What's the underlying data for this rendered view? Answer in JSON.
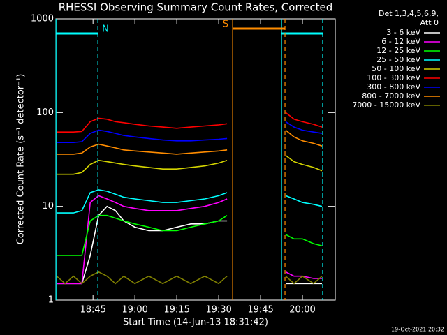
{
  "chart_data": {
    "type": "line",
    "title": "RHESSI Observing Summary Count Rates, Corrected",
    "x_label": "Start Time (14-Jun-13 18:31:42)",
    "y_label": "Corrected Count Rate (s⁻¹ detector⁻¹)",
    "legend_header": [
      "Det 1,3,4,5,6,9,",
      "Att 0"
    ],
    "footer": "19-Oct-2021 20:32",
    "log_y": true,
    "xlim": [
      31.7,
      131.75
    ],
    "ylim": [
      1,
      1000
    ],
    "xticks": [
      {
        "value": 45,
        "label": "18:45"
      },
      {
        "value": 60,
        "label": "19:00"
      },
      {
        "value": 75,
        "label": "19:15"
      },
      {
        "value": 90,
        "label": "19:30"
      },
      {
        "value": 105,
        "label": "19:45"
      },
      {
        "value": 120,
        "label": "20:00"
      }
    ],
    "yticks": [
      1,
      10,
      100,
      1000
    ],
    "x": [
      32,
      35,
      38,
      41,
      44,
      47,
      50,
      53,
      56,
      60,
      65,
      70,
      75,
      80,
      85,
      90,
      93,
      100,
      114,
      117,
      120,
      124,
      127
    ],
    "series": [
      {
        "name": "3 - 6 keV",
        "color": "#ffffff",
        "values": [
          1.5,
          1.5,
          1.5,
          1.5,
          3,
          8,
          10,
          9,
          7,
          6,
          5.5,
          5.5,
          6,
          6.5,
          6.5,
          7,
          7,
          null,
          1.5,
          1.5,
          1.5,
          1.5,
          1.5
        ]
      },
      {
        "name": "6 - 12 keV",
        "color": "#ff00ff",
        "values": [
          1.5,
          1.5,
          1.5,
          1.5,
          11,
          13,
          12,
          11,
          10,
          9.5,
          9,
          9,
          9,
          9.5,
          10,
          11,
          12,
          null,
          2,
          1.8,
          1.8,
          1.7,
          1.7
        ]
      },
      {
        "name": "12 - 25 keV",
        "color": "#00ff00",
        "values": [
          3,
          3,
          3,
          3,
          7,
          8,
          8,
          7.5,
          7,
          6.5,
          6,
          5.5,
          5.5,
          6,
          6.5,
          7,
          8,
          null,
          5,
          4.5,
          4.5,
          4,
          3.8
        ]
      },
      {
        "name": "25 - 50 keV",
        "color": "#00ffff",
        "values": [
          8.5,
          8.5,
          8.5,
          9,
          14,
          15,
          14.5,
          13.5,
          12.5,
          12,
          11.5,
          11,
          11,
          11.5,
          12,
          13,
          14,
          null,
          13,
          12,
          11,
          10.5,
          10
        ]
      },
      {
        "name": "50 - 100 keV",
        "color": "#d4d400",
        "values": [
          22,
          22,
          22,
          23,
          28,
          31,
          30,
          29,
          28,
          27,
          26,
          25,
          25,
          26,
          27,
          29,
          31,
          null,
          35,
          30,
          28,
          26,
          24
        ]
      },
      {
        "name": "100 - 300 keV",
        "color": "#ff0000",
        "values": [
          62,
          62,
          62,
          63,
          80,
          87,
          85,
          80,
          78,
          75,
          72,
          70,
          68,
          70,
          72,
          74,
          76,
          null,
          100,
          85,
          80,
          75,
          70
        ]
      },
      {
        "name": "300 - 800 keV",
        "color": "#0000ff",
        "values": [
          48,
          48,
          48,
          49,
          60,
          65,
          63,
          60,
          57,
          55,
          53,
          51,
          50,
          50,
          51,
          52,
          53,
          null,
          80,
          70,
          65,
          62,
          60
        ]
      },
      {
        "name": "800 - 7000 keV",
        "color": "#ff8c00",
        "values": [
          36,
          36,
          36,
          37,
          43,
          46,
          44,
          42,
          40,
          39,
          38,
          37,
          36,
          37,
          38,
          39,
          40,
          null,
          65,
          55,
          50,
          47,
          44
        ]
      },
      {
        "name": "7000 - 15000 keV",
        "color": "#808000",
        "values": [
          1.8,
          1.5,
          1.8,
          1.5,
          1.8,
          2,
          1.8,
          1.5,
          1.8,
          1.5,
          1.8,
          1.5,
          1.8,
          1.5,
          1.8,
          1.5,
          1.8,
          null,
          1.8,
          1.5,
          1.8,
          1.5,
          1.8
        ]
      }
    ],
    "annotations": [
      {
        "text": "N",
        "start": 31.75,
        "end": 46.75,
        "color": "#00ffff"
      },
      {
        "start": 112.5,
        "end": 127.25,
        "color": "#00ffff"
      },
      {
        "text": "S",
        "start": 95,
        "end": 113.75,
        "color": "#ff8c00"
      }
    ]
  }
}
